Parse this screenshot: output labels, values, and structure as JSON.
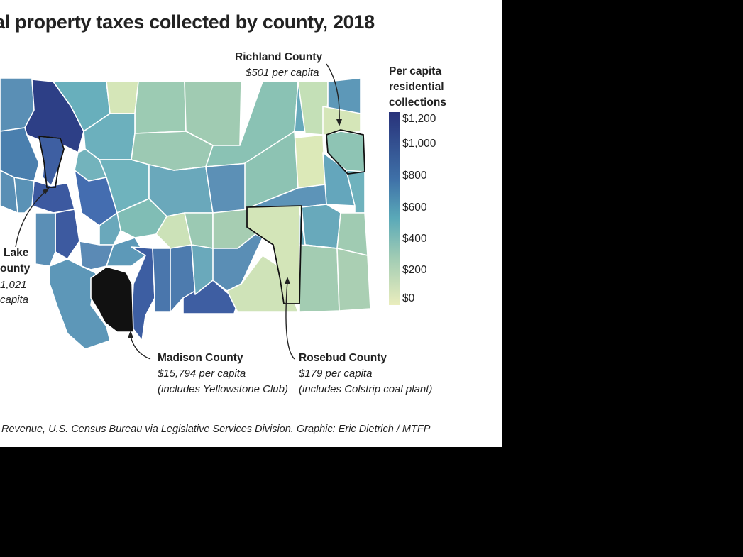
{
  "title": "al property taxes collected by county, 2018",
  "legend": {
    "title_lines": [
      "Per capita",
      "residential",
      "collections"
    ],
    "ticks": [
      "$1,200",
      "$1,000",
      "$800",
      "$600",
      "$400",
      "$200",
      "$0"
    ],
    "color_low": "#eaedbd",
    "color_mid": "#5aa9b8",
    "color_high": "#28327a"
  },
  "callouts": {
    "richland": {
      "name": "Richland County",
      "value": "$501 per capita"
    },
    "lake": {
      "name_1": "Lake",
      "name_2": "ounty",
      "value": "1,021",
      "unit": "capita"
    },
    "madison": {
      "name": "Madison County",
      "value": "$15,794 per capita",
      "note": "(includes Yellowstone Club)"
    },
    "rosebud": {
      "name": "Rosebud County",
      "value": "$179 per capita",
      "note": "(includes Colstrip coal plant)"
    }
  },
  "source": "Revenue, U.S. Census Bureau via Legislative Services Division. Graphic: Eric Dietrich / MTFP",
  "map_data": {
    "highlighted_counties": [
      {
        "name": "Richland County",
        "per_capita": 501
      },
      {
        "name": "Lake County",
        "per_capita": 1021
      },
      {
        "name": "Madison County",
        "per_capita": 15794
      },
      {
        "name": "Rosebud County",
        "per_capita": 179
      }
    ],
    "outlier_color": "#111111",
    "border_color": "#ffffff"
  }
}
